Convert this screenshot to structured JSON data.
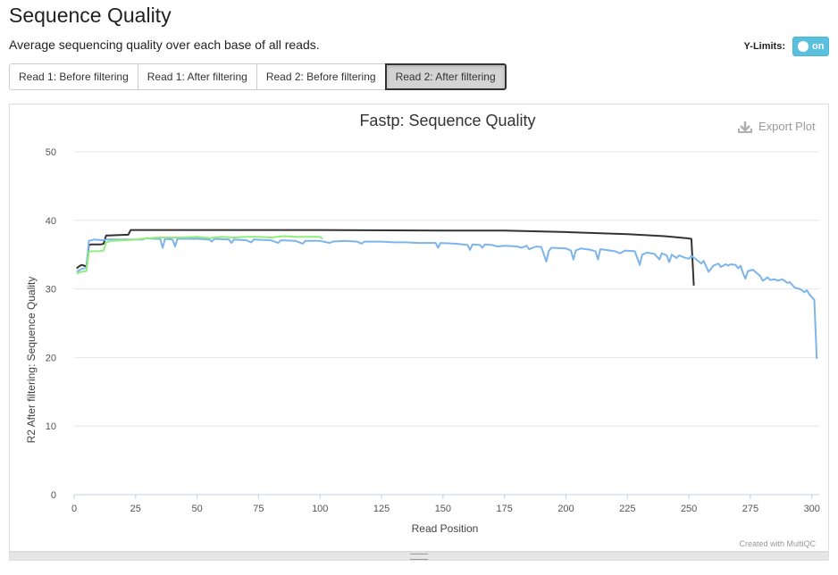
{
  "section": {
    "title": "Sequence Quality",
    "description": "Average sequencing quality over each base of all reads."
  },
  "ylimits": {
    "label": "Y-Limits:",
    "state": "on"
  },
  "tabs": [
    {
      "label": "Read 1: Before filtering",
      "active": false
    },
    {
      "label": "Read 1: After filtering",
      "active": false
    },
    {
      "label": "Read 2: Before filtering",
      "active": false
    },
    {
      "label": "Read 2: After filtering",
      "active": true
    }
  ],
  "export": {
    "label": "Export Plot"
  },
  "credit": "Created with MultiQC",
  "colors": {
    "toggle": "#5bc0de",
    "series_black": "#333333",
    "series_blue": "#7cb5ec",
    "series_green": "#90ed7d"
  },
  "chart_data": {
    "type": "line",
    "title": "Fastp: Sequence Quality",
    "xlabel": "Read Position",
    "ylabel": "R2 After filtering: Sequence Quality",
    "xlim": [
      0,
      303
    ],
    "ylim": [
      0,
      50
    ],
    "x_ticks": [
      0,
      25,
      50,
      75,
      100,
      125,
      150,
      175,
      200,
      225,
      250,
      275,
      300
    ],
    "y_ticks": [
      0,
      10,
      20,
      30,
      40,
      50
    ],
    "grid": true,
    "series": [
      {
        "color": "#333333",
        "points": [
          [
            1,
            33.0
          ],
          [
            2,
            33.3
          ],
          [
            3,
            33.5
          ],
          [
            4,
            33.4
          ],
          [
            5,
            33.3
          ],
          [
            6,
            36.4
          ],
          [
            7,
            36.5
          ],
          [
            11,
            36.5
          ],
          [
            12,
            36.6
          ],
          [
            13,
            37.8
          ],
          [
            14,
            37.8
          ],
          [
            22,
            37.9
          ],
          [
            23,
            38.6
          ],
          [
            50,
            38.6
          ],
          [
            100,
            38.6
          ],
          [
            150,
            38.5
          ],
          [
            175,
            38.5
          ],
          [
            200,
            38.3
          ],
          [
            225,
            38.0
          ],
          [
            240,
            37.7
          ],
          [
            249,
            37.4
          ],
          [
            251,
            37.3
          ],
          [
            252,
            30.5
          ]
        ]
      },
      {
        "color": "#7cb5ec",
        "points": [
          [
            1,
            32.5
          ],
          [
            3,
            32.9
          ],
          [
            5,
            33.1
          ],
          [
            6,
            37.0
          ],
          [
            8,
            37.2
          ],
          [
            12,
            37.1
          ],
          [
            13,
            37.2
          ],
          [
            22,
            37.2
          ],
          [
            28,
            37.2
          ],
          [
            29,
            37.4
          ],
          [
            33,
            37.3
          ],
          [
            35,
            37.3
          ],
          [
            36,
            36.0
          ],
          [
            37,
            37.3
          ],
          [
            40,
            37.2
          ],
          [
            41,
            36.2
          ],
          [
            42,
            37.3
          ],
          [
            50,
            37.3
          ],
          [
            55,
            37.2
          ],
          [
            56,
            36.9
          ],
          [
            57,
            37.3
          ],
          [
            63,
            37.2
          ],
          [
            64,
            36.7
          ],
          [
            65,
            37.2
          ],
          [
            70,
            37.1
          ],
          [
            72,
            36.8
          ],
          [
            73,
            37.2
          ],
          [
            80,
            37.1
          ],
          [
            83,
            36.7
          ],
          [
            84,
            37.1
          ],
          [
            90,
            37.0
          ],
          [
            93,
            36.6
          ],
          [
            94,
            37.0
          ],
          [
            100,
            37.0
          ],
          [
            104,
            36.7
          ],
          [
            105,
            36.9
          ],
          [
            110,
            37.0
          ],
          [
            115,
            36.9
          ],
          [
            117,
            36.6
          ],
          [
            118,
            36.9
          ],
          [
            125,
            36.9
          ],
          [
            130,
            36.8
          ],
          [
            135,
            36.8
          ],
          [
            140,
            36.7
          ],
          [
            147,
            36.7
          ],
          [
            148,
            36.0
          ],
          [
            149,
            36.7
          ],
          [
            155,
            36.6
          ],
          [
            160,
            36.4
          ],
          [
            161,
            35.7
          ],
          [
            162,
            36.5
          ],
          [
            165,
            36.4
          ],
          [
            166,
            36.0
          ],
          [
            167,
            36.5
          ],
          [
            170,
            36.4
          ],
          [
            172,
            36.2
          ],
          [
            175,
            36.3
          ],
          [
            180,
            36.2
          ],
          [
            182,
            36.0
          ],
          [
            184,
            36.3
          ],
          [
            185,
            35.8
          ],
          [
            188,
            36.2
          ],
          [
            190,
            36.1
          ],
          [
            192,
            34.0
          ],
          [
            193,
            35.5
          ],
          [
            194,
            36.0
          ],
          [
            200,
            35.9
          ],
          [
            202,
            35.6
          ],
          [
            203,
            34.3
          ],
          [
            204,
            35.6
          ],
          [
            206,
            35.9
          ],
          [
            210,
            35.7
          ],
          [
            212,
            35.5
          ],
          [
            213,
            34.3
          ],
          [
            214,
            35.8
          ],
          [
            220,
            35.5
          ],
          [
            222,
            35.2
          ],
          [
            224,
            35.6
          ],
          [
            228,
            35.5
          ],
          [
            230,
            33.5
          ],
          [
            231,
            35.0
          ],
          [
            233,
            35.3
          ],
          [
            236,
            35.1
          ],
          [
            238,
            34.3
          ],
          [
            239,
            35.2
          ],
          [
            241,
            34.9
          ],
          [
            242,
            33.9
          ],
          [
            243,
            35.0
          ],
          [
            245,
            34.5
          ],
          [
            246,
            34.9
          ],
          [
            248,
            34.6
          ],
          [
            250,
            34.4
          ],
          [
            251,
            34.8
          ],
          [
            253,
            34.3
          ],
          [
            255,
            33.7
          ],
          [
            256,
            34.1
          ],
          [
            258,
            32.5
          ],
          [
            260,
            33.4
          ],
          [
            262,
            33.7
          ],
          [
            263,
            33.2
          ],
          [
            265,
            33.6
          ],
          [
            266,
            33.4
          ],
          [
            267,
            33.6
          ],
          [
            269,
            33.5
          ],
          [
            270,
            33.0
          ],
          [
            271,
            33.4
          ],
          [
            272,
            32.3
          ],
          [
            273,
            31.5
          ],
          [
            274,
            32.6
          ],
          [
            276,
            32.8
          ],
          [
            277,
            32.5
          ],
          [
            279,
            31.9
          ],
          [
            280,
            31.2
          ],
          [
            281,
            31.4
          ],
          [
            282,
            31.7
          ],
          [
            283,
            31.3
          ],
          [
            285,
            31.4
          ],
          [
            286,
            31.2
          ],
          [
            287,
            31.3
          ],
          [
            288,
            31.4
          ],
          [
            290,
            30.9
          ],
          [
            291,
            31.0
          ],
          [
            292,
            30.6
          ],
          [
            293,
            30.2
          ],
          [
            295,
            30.0
          ],
          [
            296,
            29.8
          ],
          [
            297,
            29.5
          ],
          [
            298,
            29.8
          ],
          [
            299,
            29.2
          ],
          [
            300,
            28.8
          ],
          [
            301,
            28.4
          ],
          [
            302,
            19.8
          ]
        ]
      },
      {
        "color": "#90ed7d",
        "points": [
          [
            1,
            32.2
          ],
          [
            2,
            32.4
          ],
          [
            3,
            32.5
          ],
          [
            5,
            32.6
          ],
          [
            6,
            35.4
          ],
          [
            7,
            35.5
          ],
          [
            10,
            35.5
          ],
          [
            12,
            35.6
          ],
          [
            13,
            36.8
          ],
          [
            15,
            37.0
          ],
          [
            20,
            37.1
          ],
          [
            25,
            37.2
          ],
          [
            30,
            37.4
          ],
          [
            35,
            37.5
          ],
          [
            40,
            37.5
          ],
          [
            45,
            37.5
          ],
          [
            50,
            37.6
          ],
          [
            55,
            37.4
          ],
          [
            60,
            37.6
          ],
          [
            65,
            37.5
          ],
          [
            70,
            37.6
          ],
          [
            75,
            37.6
          ],
          [
            80,
            37.5
          ],
          [
            85,
            37.7
          ],
          [
            90,
            37.6
          ],
          [
            95,
            37.6
          ],
          [
            100,
            37.6
          ],
          [
            101,
            37.3
          ]
        ]
      }
    ]
  }
}
